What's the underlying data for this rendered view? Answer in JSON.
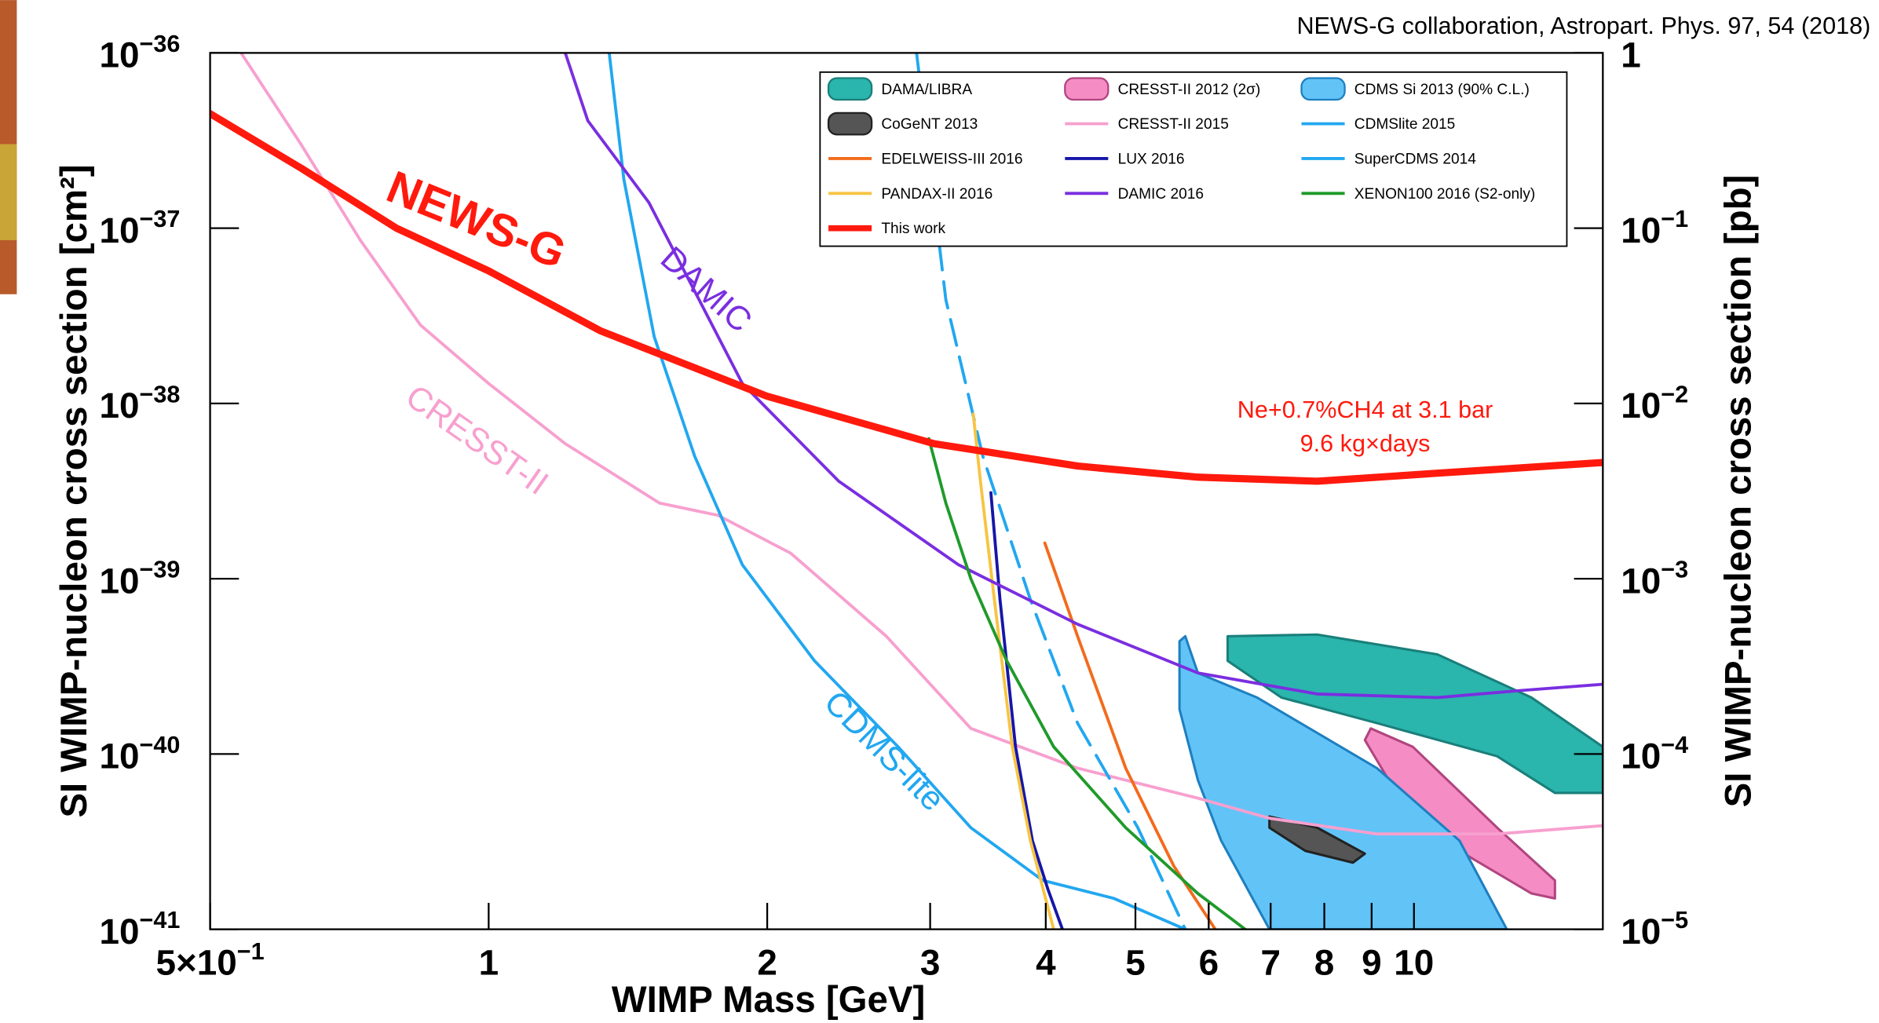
{
  "chart_data": {
    "type": "line",
    "source": "NEWS-G collaboration, Astropart. Phys. 97, 54 (2018)",
    "x_label": "WIMP Mass [GeV]",
    "y_label": "SI WIMP-nucleon cross section [cm²]",
    "y2_label": "SI WIMP-nucleon cross section [pb]",
    "xscale": "log",
    "yscale": "log",
    "xlim": [
      0.5,
      16
    ],
    "ylim": [
      1e-41,
      1e-36
    ],
    "y2lim": [
      1e-05,
      1
    ],
    "xticks": [
      {
        "value": 0.5,
        "label": "5×10",
        "exponent": "−1"
      },
      1,
      2,
      3,
      4,
      5,
      6,
      7,
      8,
      9,
      10
    ],
    "yticks": [
      {
        "value": 1e-41,
        "label": "10",
        "exponent": "−41"
      },
      {
        "value": 1e-40,
        "label": "10",
        "exponent": "−40"
      },
      {
        "value": 1e-39,
        "label": "10",
        "exponent": "−39"
      },
      {
        "value": 1e-38,
        "label": "10",
        "exponent": "−38"
      },
      {
        "value": 1e-37,
        "label": "10",
        "exponent": "−37"
      },
      {
        "value": 1e-36,
        "label": "10",
        "exponent": "−36"
      }
    ],
    "y2ticks": [
      {
        "value": 1e-05,
        "label": "10",
        "exponent": "−5"
      },
      {
        "value": 0.0001,
        "label": "10",
        "exponent": "−4"
      },
      {
        "value": 0.001,
        "label": "10",
        "exponent": "−3"
      },
      {
        "value": 0.01,
        "label": "10",
        "exponent": "−2"
      },
      {
        "value": 0.1,
        "label": "10",
        "exponent": "−1"
      },
      1
    ],
    "annotations": [
      "NEWS-G",
      "DAMIC",
      "CRESST-II",
      "CDMS-lite",
      "Ne+0.7%CH4 at 3.1 bar",
      "9.6 kg×days"
    ],
    "series": [
      {
        "name": "DAMA/LIBRA",
        "type": "region",
        "color": "#2ab5ad",
        "edge": "#1a7f7a",
        "x": [
          6.29,
          7.86,
          10.6,
          13.4,
          16,
          16,
          14.2,
          12.3,
          9.12,
          7.19,
          6.29
        ],
        "y": [
          4.7e-40,
          4.8e-40,
          3.7e-40,
          2.1e-40,
          1.1e-40,
          6e-41,
          6e-41,
          9.7e-41,
          1.5e-40,
          2.1e-40,
          3.4e-40
        ]
      },
      {
        "name": "CRESST-II 2012 (2σ)",
        "type": "region",
        "color": "#f58cc4",
        "edge": "#b0457f",
        "x": [
          8.98,
          9.97,
          12.3,
          14.2,
          14.2,
          13.4,
          11.2,
          9.39,
          8.85
        ],
        "y": [
          1.4e-40,
          1.1e-40,
          3.8e-41,
          1.9e-41,
          1.5e-41,
          1.6e-41,
          2.8e-41,
          7.1e-41,
          1.2e-40
        ]
      },
      {
        "name": "CDMS Si 2013 (90% C.L.)",
        "type": "region",
        "color": "#62c3f7",
        "edge": "#1e7fc0",
        "x": [
          5.66,
          5.84,
          6.77,
          9.12,
          11.2,
          12.6,
          6.98,
          6.19,
          5.84,
          5.58,
          5.58
        ],
        "y": [
          4.7e-40,
          2.9e-40,
          2.1e-40,
          8.3e-41,
          3.2e-41,
          1e-41,
          1e-41,
          3.2e-41,
          7.1e-41,
          1.8e-40,
          4.4e-40
        ]
      },
      {
        "name": "CoGeNT 2013",
        "type": "region",
        "color": "#555555",
        "edge": "#222222",
        "x": [
          6.98,
          7.86,
          8.85,
          8.59,
          7.63,
          6.98
        ],
        "y": [
          4.4e-41,
          3.8e-41,
          2.7e-41,
          2.4e-41,
          2.8e-41,
          3.8e-41
        ]
      },
      {
        "name": "CRESST-II 2015",
        "type": "line",
        "color": "#f7a0cf",
        "x": [
          0.54,
          0.627,
          0.727,
          0.844,
          1,
          1.21,
          1.53,
          1.77,
          2.12,
          2.69,
          3.32,
          4.33,
          5.84,
          6.98,
          9.12,
          12.3,
          16
        ],
        "y": [
          1e-36,
          3e-37,
          8.5e-38,
          2.8e-38,
          1.3e-38,
          5.9e-39,
          2.7e-39,
          2.3e-39,
          1.4e-39,
          4.7e-40,
          1.4e-40,
          8.3e-41,
          5.6e-41,
          4.3e-41,
          3.5e-41,
          3.5e-41,
          3.9e-41
        ]
      },
      {
        "name": "CDMSlite 2015",
        "type": "line",
        "color": "#22a7f0",
        "x": [
          1.35,
          1.4,
          1.51,
          1.67,
          1.88,
          2.25,
          2.77,
          3.32,
          3.97,
          4.74,
          5.66
        ],
        "y": [
          1e-36,
          1.9e-37,
          2.4e-38,
          5e-39,
          1.2e-39,
          3.4e-40,
          1.1e-40,
          3.8e-41,
          1.9e-41,
          1.5e-41,
          1e-41
        ]
      },
      {
        "name": "EDELWEISS-III 2016",
        "type": "line",
        "color": "#f26b1d",
        "x": [
          3.99,
          4.33,
          4.88,
          5.5,
          6.1
        ],
        "y": [
          1.6e-39,
          4.7e-40,
          8.3e-41,
          2.3e-41,
          1e-41
        ]
      },
      {
        "name": "LUX 2016",
        "type": "line",
        "color": "#1616a8",
        "x": [
          3.49,
          3.57,
          3.71,
          3.87,
          4.02,
          4.17
        ],
        "y": [
          3.1e-39,
          7.6e-40,
          1.1e-40,
          3.2e-41,
          1.7e-41,
          1e-41
        ]
      },
      {
        "name": "SuperCDMS 2014",
        "type": "line",
        "color": "#22a7f0",
        "linestyle": "dashed",
        "x": [
          2.9,
          3.12,
          3.42,
          3.85,
          4.33,
          5.03,
          5.66
        ],
        "y": [
          1e-36,
          3.9e-38,
          5e-39,
          7.6e-40,
          1.5e-40,
          3.8e-41,
          1e-41
        ]
      },
      {
        "name": "PANDAX-II 2016",
        "type": "line",
        "color": "#f7c443",
        "x": [
          3.34,
          3.4,
          3.52,
          3.68,
          3.85,
          4.08
        ],
        "y": [
          8.7e-39,
          3.6e-39,
          7.6e-40,
          1.1e-40,
          3.2e-41,
          1e-41
        ]
      },
      {
        "name": "DAMIC 2016",
        "type": "line",
        "color": "#7a2ee0",
        "x": [
          1.21,
          1.28,
          1.49,
          1.88,
          2.39,
          3.22,
          4.33,
          5.84,
          7.86,
          10.6,
          13.0,
          16
        ],
        "y": [
          1e-36,
          4.1e-37,
          1.4e-37,
          1.3e-38,
          3.6e-39,
          1.2e-39,
          5.5e-40,
          2.9e-40,
          2.2e-40,
          2.1e-40,
          2.3e-40,
          2.5e-40
        ]
      },
      {
        "name": "XENON100 2016 (S2-only)",
        "type": "line",
        "color": "#1f9a2a",
        "x": [
          2.99,
          3.12,
          3.32,
          3.63,
          4.08,
          4.88,
          5.84,
          6.57
        ],
        "y": [
          6.3e-39,
          2.7e-39,
          1e-39,
          3.4e-40,
          1.1e-40,
          3.8e-41,
          1.6e-41,
          1e-41
        ]
      },
      {
        "name": "This work",
        "type": "line",
        "color": "#ff1a0d",
        "linestyle": "thick",
        "x": [
          0.5,
          0.627,
          0.795,
          1,
          1.32,
          2,
          3.03,
          4.33,
          5.84,
          7.86,
          10.6,
          16
        ],
        "y": [
          4.5e-37,
          2.2e-37,
          1e-37,
          5.7e-38,
          2.6e-38,
          1.1e-38,
          5.9e-39,
          4.4e-39,
          3.8e-39,
          3.6e-39,
          4e-39,
          4.6e-39
        ]
      }
    ]
  }
}
